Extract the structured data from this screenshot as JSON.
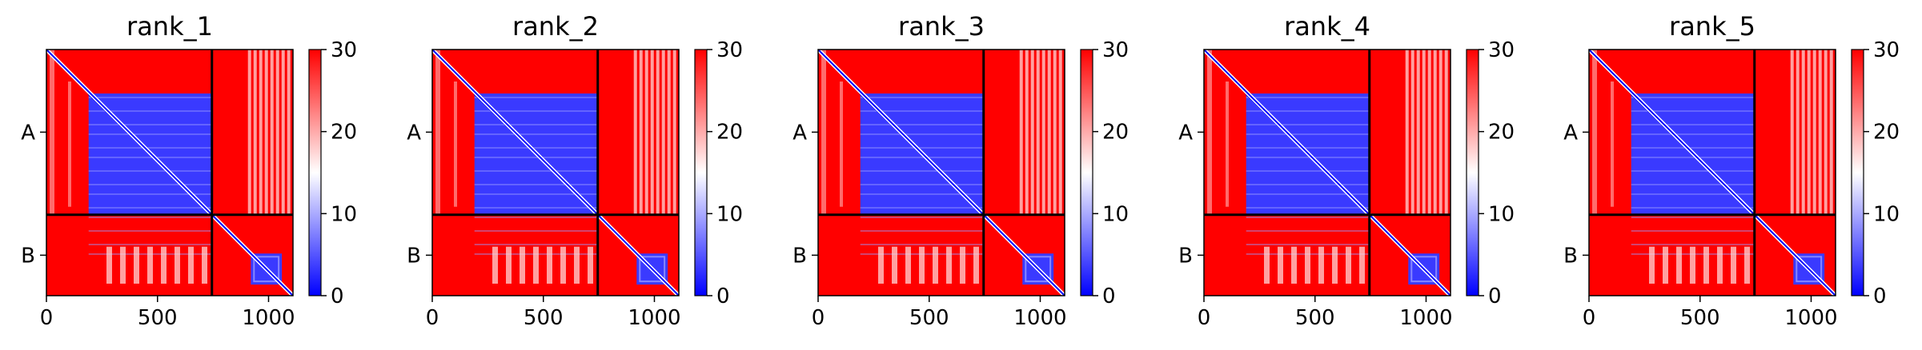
{
  "chart_data": {
    "type": "heatmap",
    "title": "",
    "xlabel": "",
    "ylabel": "",
    "colormap": {
      "name": "bwr",
      "low": "#0000ff",
      "mid": "#ffffff",
      "high": "#ff0000"
    },
    "value_range": [
      0,
      30
    ],
    "x_range": [
      0,
      1110
    ],
    "x_ticks": [
      0,
      500,
      1000
    ],
    "chains": [
      {
        "name": "A",
        "start": 0,
        "end": 745
      },
      {
        "name": "B",
        "start": 745,
        "end": 1110
      }
    ],
    "colorbar_ticks": [
      0,
      10,
      20,
      30
    ],
    "panels": [
      {
        "title": "rank_1"
      },
      {
        "title": "rank_2"
      },
      {
        "title": "rank_3"
      },
      {
        "title": "rank_4"
      },
      {
        "title": "rank_5"
      }
    ],
    "grid": false
  }
}
